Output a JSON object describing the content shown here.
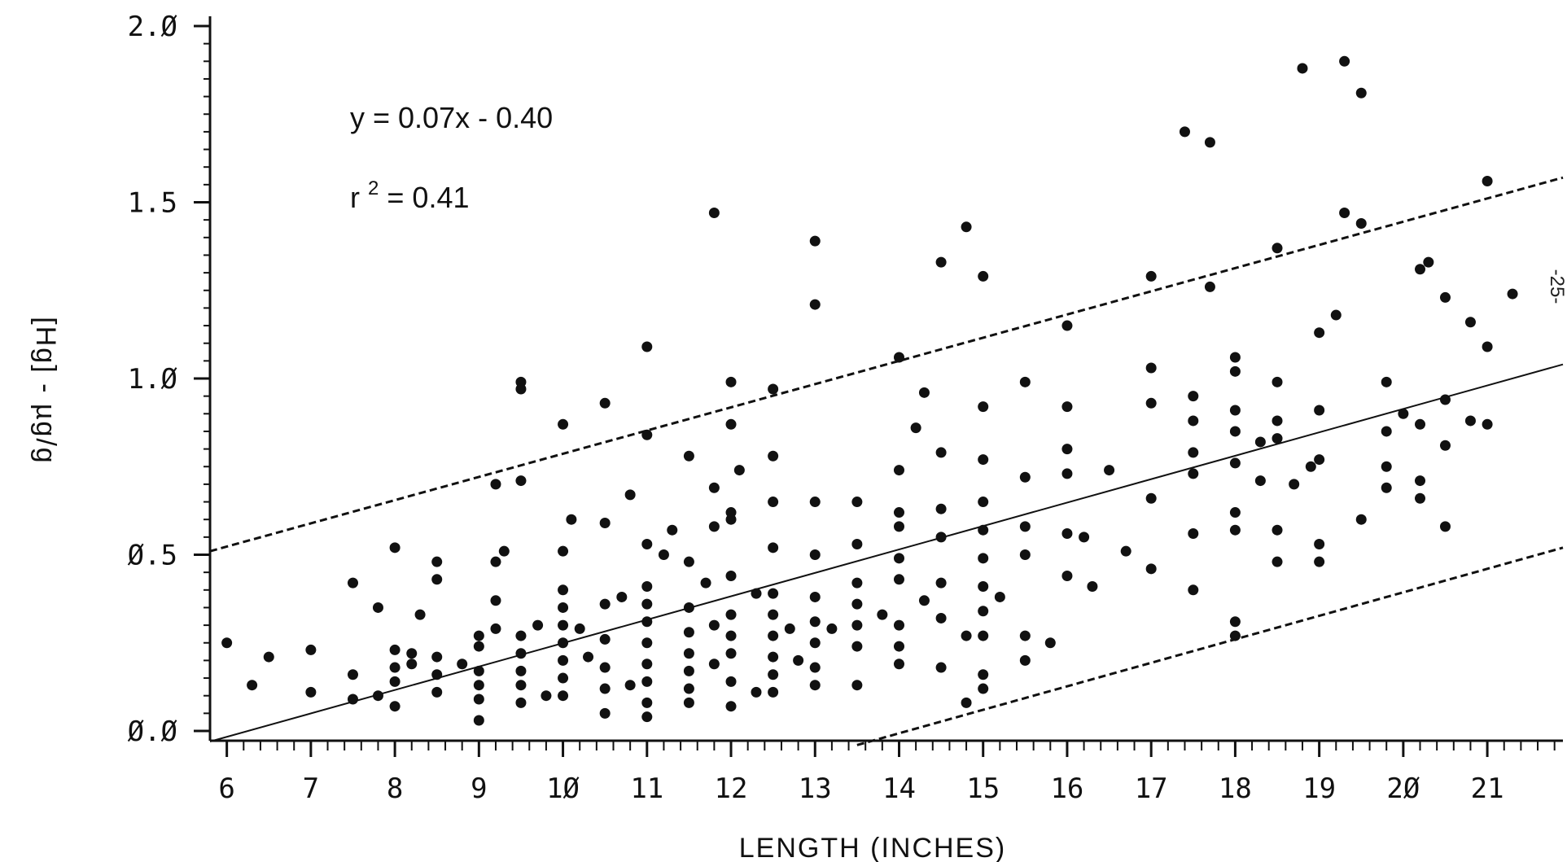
{
  "chart_data": {
    "type": "scatter",
    "title": "",
    "xlabel": "LENGTH (INCHES)",
    "ylabel": "[Hg] - µg/g",
    "xlim": [
      5.8,
      21.9
    ],
    "ylim": [
      0.0,
      2.0
    ],
    "x_ticks": [
      "6",
      "7",
      "8",
      "9",
      "10",
      "11",
      "12",
      "13",
      "14",
      "15",
      "16",
      "17",
      "18",
      "19",
      "20",
      "21"
    ],
    "y_ticks": [
      "0.0",
      "0.5",
      "1.0",
      "1.5",
      "2.0"
    ],
    "annotations": {
      "equation": "y = 0.07x - 0.40",
      "r2_prefix": "r",
      "r2_sup": "2",
      "r2_value": "= 0.41"
    },
    "margin_note": "-25-",
    "lines": [
      {
        "style": "solid",
        "x": [
          5.8,
          21.9
        ],
        "y": [
          -0.03,
          1.04
        ]
      },
      {
        "style": "dashed",
        "x": [
          5.8,
          21.9
        ],
        "y": [
          0.51,
          1.57
        ]
      },
      {
        "style": "dashed",
        "x": [
          13.5,
          21.9
        ],
        "y": [
          -0.04,
          0.52
        ]
      }
    ],
    "points": [
      [
        6.0,
        0.25
      ],
      [
        6.3,
        0.13
      ],
      [
        6.5,
        0.21
      ],
      [
        7.0,
        0.23
      ],
      [
        7.0,
        0.11
      ],
      [
        7.5,
        0.42
      ],
      [
        7.5,
        0.16
      ],
      [
        7.5,
        0.09
      ],
      [
        7.8,
        0.35
      ],
      [
        7.8,
        0.1
      ],
      [
        8.0,
        0.52
      ],
      [
        8.0,
        0.23
      ],
      [
        8.0,
        0.18
      ],
      [
        8.0,
        0.14
      ],
      [
        8.0,
        0.07
      ],
      [
        8.2,
        0.22
      ],
      [
        8.2,
        0.19
      ],
      [
        8.3,
        0.33
      ],
      [
        8.5,
        0.48
      ],
      [
        8.5,
        0.43
      ],
      [
        8.5,
        0.21
      ],
      [
        8.5,
        0.16
      ],
      [
        8.5,
        0.11
      ],
      [
        8.8,
        0.19
      ],
      [
        9.0,
        0.27
      ],
      [
        9.0,
        0.24
      ],
      [
        9.0,
        0.17
      ],
      [
        9.0,
        0.13
      ],
      [
        9.0,
        0.09
      ],
      [
        9.0,
        0.03
      ],
      [
        9.2,
        0.7
      ],
      [
        9.2,
        0.48
      ],
      [
        9.2,
        0.37
      ],
      [
        9.2,
        0.29
      ],
      [
        9.3,
        0.51
      ],
      [
        9.5,
        0.99
      ],
      [
        9.5,
        0.97
      ],
      [
        9.5,
        0.71
      ],
      [
        9.5,
        0.27
      ],
      [
        9.5,
        0.22
      ],
      [
        9.5,
        0.17
      ],
      [
        9.5,
        0.13
      ],
      [
        9.5,
        0.08
      ],
      [
        9.7,
        0.3
      ],
      [
        9.8,
        0.1
      ],
      [
        10.0,
        0.87
      ],
      [
        10.0,
        0.51
      ],
      [
        10.0,
        0.4
      ],
      [
        10.0,
        0.35
      ],
      [
        10.0,
        0.3
      ],
      [
        10.0,
        0.25
      ],
      [
        10.0,
        0.2
      ],
      [
        10.0,
        0.15
      ],
      [
        10.0,
        0.1
      ],
      [
        10.1,
        0.6
      ],
      [
        10.2,
        0.29
      ],
      [
        10.3,
        0.21
      ],
      [
        10.5,
        0.93
      ],
      [
        10.5,
        0.59
      ],
      [
        10.5,
        0.36
      ],
      [
        10.5,
        0.26
      ],
      [
        10.5,
        0.18
      ],
      [
        10.5,
        0.12
      ],
      [
        10.5,
        0.05
      ],
      [
        10.7,
        0.38
      ],
      [
        10.8,
        0.67
      ],
      [
        10.8,
        0.13
      ],
      [
        11.0,
        1.09
      ],
      [
        11.0,
        0.84
      ],
      [
        11.0,
        0.53
      ],
      [
        11.0,
        0.41
      ],
      [
        11.0,
        0.36
      ],
      [
        11.0,
        0.31
      ],
      [
        11.0,
        0.25
      ],
      [
        11.0,
        0.19
      ],
      [
        11.0,
        0.14
      ],
      [
        11.0,
        0.08
      ],
      [
        11.0,
        0.04
      ],
      [
        11.2,
        0.5
      ],
      [
        11.3,
        0.57
      ],
      [
        11.5,
        0.78
      ],
      [
        11.5,
        0.48
      ],
      [
        11.5,
        0.35
      ],
      [
        11.5,
        0.28
      ],
      [
        11.5,
        0.22
      ],
      [
        11.5,
        0.17
      ],
      [
        11.5,
        0.12
      ],
      [
        11.5,
        0.08
      ],
      [
        11.7,
        0.42
      ],
      [
        11.8,
        1.47
      ],
      [
        11.8,
        0.69
      ],
      [
        11.8,
        0.58
      ],
      [
        11.8,
        0.3
      ],
      [
        11.8,
        0.19
      ],
      [
        12.0,
        0.99
      ],
      [
        12.0,
        0.87
      ],
      [
        12.0,
        0.62
      ],
      [
        12.0,
        0.6
      ],
      [
        12.0,
        0.44
      ],
      [
        12.0,
        0.33
      ],
      [
        12.0,
        0.27
      ],
      [
        12.0,
        0.22
      ],
      [
        12.0,
        0.14
      ],
      [
        12.0,
        0.07
      ],
      [
        12.1,
        0.74
      ],
      [
        12.3,
        0.39
      ],
      [
        12.3,
        0.11
      ],
      [
        12.5,
        0.97
      ],
      [
        12.5,
        0.78
      ],
      [
        12.5,
        0.65
      ],
      [
        12.5,
        0.52
      ],
      [
        12.5,
        0.39
      ],
      [
        12.5,
        0.33
      ],
      [
        12.5,
        0.27
      ],
      [
        12.5,
        0.21
      ],
      [
        12.5,
        0.16
      ],
      [
        12.5,
        0.11
      ],
      [
        12.7,
        0.29
      ],
      [
        12.8,
        0.2
      ],
      [
        13.0,
        1.39
      ],
      [
        13.0,
        1.21
      ],
      [
        13.0,
        0.65
      ],
      [
        13.0,
        0.5
      ],
      [
        13.0,
        0.38
      ],
      [
        13.0,
        0.31
      ],
      [
        13.0,
        0.25
      ],
      [
        13.0,
        0.18
      ],
      [
        13.0,
        0.13
      ],
      [
        13.2,
        0.29
      ],
      [
        13.5,
        0.65
      ],
      [
        13.5,
        0.53
      ],
      [
        13.5,
        0.42
      ],
      [
        13.5,
        0.36
      ],
      [
        13.5,
        0.3
      ],
      [
        13.5,
        0.24
      ],
      [
        13.5,
        0.13
      ],
      [
        13.8,
        0.33
      ],
      [
        14.0,
        1.06
      ],
      [
        14.0,
        0.74
      ],
      [
        14.0,
        0.62
      ],
      [
        14.0,
        0.58
      ],
      [
        14.0,
        0.49
      ],
      [
        14.0,
        0.43
      ],
      [
        14.0,
        0.3
      ],
      [
        14.0,
        0.24
      ],
      [
        14.0,
        0.19
      ],
      [
        14.2,
        0.86
      ],
      [
        14.3,
        0.96
      ],
      [
        14.3,
        0.37
      ],
      [
        14.5,
        1.33
      ],
      [
        14.5,
        0.79
      ],
      [
        14.5,
        0.63
      ],
      [
        14.5,
        0.55
      ],
      [
        14.5,
        0.42
      ],
      [
        14.5,
        0.32
      ],
      [
        14.5,
        0.18
      ],
      [
        14.8,
        1.43
      ],
      [
        14.8,
        0.27
      ],
      [
        14.8,
        0.08
      ],
      [
        15.0,
        1.29
      ],
      [
        15.0,
        0.92
      ],
      [
        15.0,
        0.77
      ],
      [
        15.0,
        0.65
      ],
      [
        15.0,
        0.57
      ],
      [
        15.0,
        0.49
      ],
      [
        15.0,
        0.41
      ],
      [
        15.0,
        0.34
      ],
      [
        15.0,
        0.27
      ],
      [
        15.0,
        0.16
      ],
      [
        15.0,
        0.12
      ],
      [
        15.2,
        0.38
      ],
      [
        15.5,
        0.99
      ],
      [
        15.5,
        0.72
      ],
      [
        15.5,
        0.58
      ],
      [
        15.5,
        0.5
      ],
      [
        15.5,
        0.27
      ],
      [
        15.5,
        0.2
      ],
      [
        15.8,
        0.25
      ],
      [
        16.0,
        1.15
      ],
      [
        16.0,
        0.92
      ],
      [
        16.0,
        0.8
      ],
      [
        16.0,
        0.73
      ],
      [
        16.0,
        0.56
      ],
      [
        16.0,
        0.44
      ],
      [
        16.2,
        0.55
      ],
      [
        16.3,
        0.41
      ],
      [
        16.5,
        0.74
      ],
      [
        16.7,
        0.51
      ],
      [
        17.0,
        1.29
      ],
      [
        17.0,
        1.03
      ],
      [
        17.0,
        0.93
      ],
      [
        17.0,
        0.66
      ],
      [
        17.0,
        0.46
      ],
      [
        17.4,
        1.7
      ],
      [
        17.5,
        0.95
      ],
      [
        17.5,
        0.88
      ],
      [
        17.5,
        0.79
      ],
      [
        17.5,
        0.73
      ],
      [
        17.5,
        0.56
      ],
      [
        17.5,
        0.4
      ],
      [
        17.7,
        1.67
      ],
      [
        17.7,
        1.26
      ],
      [
        18.0,
        1.06
      ],
      [
        18.0,
        1.02
      ],
      [
        18.0,
        0.91
      ],
      [
        18.0,
        0.85
      ],
      [
        18.0,
        0.76
      ],
      [
        18.0,
        0.62
      ],
      [
        18.0,
        0.57
      ],
      [
        18.0,
        0.31
      ],
      [
        18.0,
        0.27
      ],
      [
        18.3,
        0.82
      ],
      [
        18.3,
        0.71
      ],
      [
        18.5,
        1.37
      ],
      [
        18.5,
        0.99
      ],
      [
        18.5,
        0.88
      ],
      [
        18.5,
        0.83
      ],
      [
        18.5,
        0.57
      ],
      [
        18.5,
        0.48
      ],
      [
        18.7,
        0.7
      ],
      [
        18.8,
        1.88
      ],
      [
        18.9,
        0.75
      ],
      [
        19.0,
        1.13
      ],
      [
        19.0,
        0.91
      ],
      [
        19.0,
        0.77
      ],
      [
        19.0,
        0.53
      ],
      [
        19.0,
        0.48
      ],
      [
        19.2,
        1.18
      ],
      [
        19.3,
        1.9
      ],
      [
        19.3,
        1.47
      ],
      [
        19.5,
        1.81
      ],
      [
        19.5,
        1.44
      ],
      [
        19.5,
        0.6
      ],
      [
        19.8,
        0.99
      ],
      [
        19.8,
        0.85
      ],
      [
        19.8,
        0.75
      ],
      [
        19.8,
        0.69
      ],
      [
        20.0,
        0.9
      ],
      [
        20.2,
        1.31
      ],
      [
        20.2,
        0.87
      ],
      [
        20.2,
        0.71
      ],
      [
        20.2,
        0.66
      ],
      [
        20.3,
        1.33
      ],
      [
        20.5,
        1.23
      ],
      [
        20.5,
        0.94
      ],
      [
        20.5,
        0.81
      ],
      [
        20.5,
        0.58
      ],
      [
        20.8,
        1.16
      ],
      [
        20.8,
        0.88
      ],
      [
        21.0,
        1.56
      ],
      [
        21.0,
        1.09
      ],
      [
        21.0,
        0.87
      ],
      [
        21.3,
        1.24
      ]
    ]
  }
}
